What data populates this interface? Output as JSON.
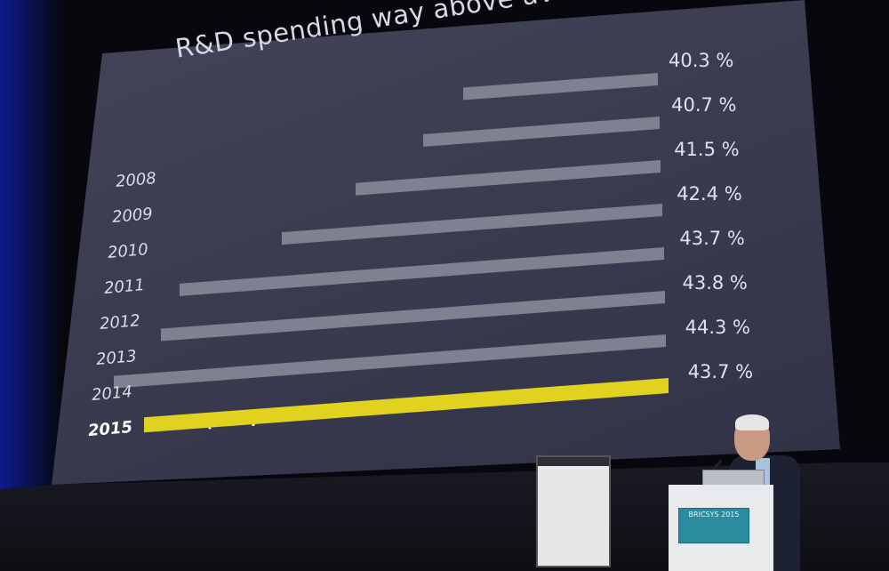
{
  "slide": {
    "title": "R&D spending way above average",
    "ytd_label": "(YTD)"
  },
  "chart_data": {
    "type": "bar",
    "orientation": "horizontal",
    "title": "R&D spending way above average",
    "categories": [
      "2008",
      "2009",
      "2010",
      "2011",
      "2012",
      "2013",
      "2014",
      "2015"
    ],
    "values": [
      40.3,
      40.7,
      41.5,
      42.4,
      43.7,
      43.8,
      44.3,
      43.7
    ],
    "value_labels": [
      "40.3 %",
      "40.7 %",
      "41.5 %",
      "42.4 %",
      "43.7 %",
      "43.8 %",
      "44.3 %",
      "43.7 %"
    ],
    "highlight_category": "2015",
    "colors": {
      "bar": "#7f8191",
      "highlight": "#e0d21e"
    }
  },
  "podium": {
    "sign_text": "BRICSYS 2015"
  }
}
